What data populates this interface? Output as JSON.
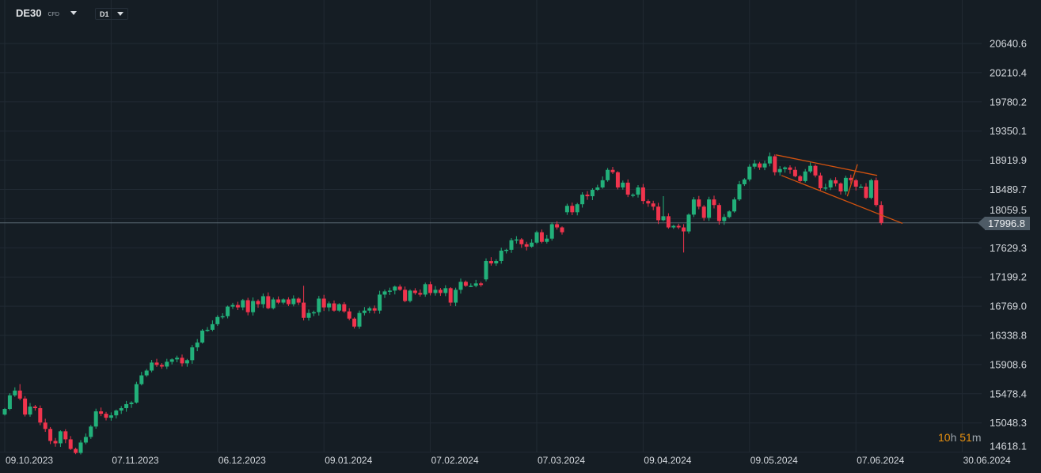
{
  "header": {
    "symbol": "DE30",
    "symbol_type": "CFD",
    "timeframe": "D1"
  },
  "countdown": {
    "hours": "10",
    "hours_unit": "h",
    "minutes": "51",
    "minutes_unit": "m"
  },
  "current_price": "17996.8",
  "colors": {
    "up": "#22b07a",
    "down": "#f0344d",
    "grid": "#212a33",
    "trendline": "#d2520f",
    "price_line": "#5d6a75",
    "background": "#151d24"
  },
  "chart_data": {
    "type": "candlestick",
    "title": "DE30 CFD D1",
    "ylim": [
      14618.1,
      20640.6
    ],
    "y_ticks": [
      "20640.6",
      "20210.4",
      "19780.2",
      "19350.1",
      "18919.9",
      "18489.7",
      "18059.5",
      "17629.3",
      "17199.2",
      "16769.0",
      "16338.8",
      "15908.6",
      "15478.4",
      "15048.3",
      "14618.1"
    ],
    "x_ticks": [
      {
        "index": 0,
        "label": "09.10.2023"
      },
      {
        "index": 21,
        "label": "07.11.2023"
      },
      {
        "index": 42,
        "label": "06.12.2023"
      },
      {
        "index": 63,
        "label": "09.01.2024"
      },
      {
        "index": 84,
        "label": "07.02.2024"
      },
      {
        "index": 105,
        "label": "07.03.2024"
      },
      {
        "index": 126,
        "label": "09.04.2024"
      },
      {
        "index": 147,
        "label": "09.05.2024"
      },
      {
        "index": 168,
        "label": "07.06.2024"
      },
      {
        "index": 189,
        "label": "30.06.2024"
      }
    ],
    "close": [
      15254.4,
      15454.7,
      15525.4,
      15407.6,
      15171.9,
      15289.7,
      15266.2,
      15054.0,
      14959.7,
      14782.9,
      14747.6,
      14924.4,
      14806.5,
      14665.1,
      14606.1,
      14759.4,
      14841.9,
      14995.1,
      15219.0,
      15183.7,
      15124.7,
      15160.1,
      15230.8,
      15266.2,
      15325.1,
      15348.7,
      15619.7,
      15749.4,
      15820.1,
      15938.0,
      15902.6,
      15879.0,
      15949.7,
      15985.1,
      16008.7,
      15926.2,
      15973.3,
      16161.9,
      16232.6,
      16409.4,
      16421.2,
      16503.7,
      16609.8,
      16621.5,
      16763.0,
      16786.5,
      16751.2,
      16857.3,
      16680.5,
      16845.5,
      16798.3,
      16916.2,
      16739.4,
      16869.0,
      16821.9,
      16869.0,
      16798.3,
      16880.8,
      16821.9,
      16598.0,
      16668.7,
      16680.5,
      16880.8,
      16751.2,
      16810.1,
      16704.0,
      16798.3,
      16692.3,
      16586.2,
      16468.3,
      16668.7,
      16704.0,
      16739.4,
      16704.0,
      16939.8,
      16986.9,
      16998.7,
      17057.6,
      17010.5,
      16845.5,
      16998.7,
      16963.3,
      16939.8,
      17093.0,
      16963.3,
      17010.5,
      16963.3,
      17034.1,
      16821.9,
      17010.5,
      17128.3,
      17069.4,
      17069.4,
      17104.8,
      17081.2,
      17434.8,
      17399.4,
      17434.8,
      17588.0,
      17599.8,
      17741.2,
      17753.0,
      17682.3,
      17646.9,
      17705.9,
      17859.1,
      17717.6,
      17764.8,
      17976.9,
      17929.8,
      17859.1,
      18248.0,
      18153.7,
      18271.6,
      18413.0,
      18389.4,
      18483.7,
      18519.1,
      18625.2,
      18778.4,
      18743.0,
      18519.1,
      18589.8,
      18413.0,
      18413.0,
      18519.1,
      18318.7,
      18283.4,
      18236.2,
      18035.9,
      18094.8,
      17929.8,
      17953.4,
      17929.8,
      17870.9,
      18118.4,
      18342.3,
      18236.2,
      18071.2,
      18342.3,
      18259.8,
      18024.1,
      18083.0,
      18165.5,
      18342.3,
      18566.2,
      18636.9,
      18825.5,
      18872.7,
      18813.7,
      18872.7,
      18978.7,
      18743.0,
      18790.2,
      18813.7,
      18778.4,
      18684.1,
      18613.4,
      18754.8,
      18837.3,
      18695.9,
      18507.3,
      18519.1,
      18625.2,
      18578.0,
      18460.2,
      18660.5,
      18625.2,
      18530.9,
      18530.9,
      18365.9,
      18625.2,
      18259.8,
      17996.8
    ],
    "open_gaps": {
      "0": 15171.9,
      "95": 17163.7,
      "111": 18153.7
    },
    "notable_wicks": {
      "3": {
        "high": 15620
      },
      "59": {
        "high": 17070
      },
      "130": {
        "high": 18390
      },
      "134": {
        "low": 17560
      }
    },
    "trendlines": [
      {
        "name": "channel-top",
        "from": [
          152.2,
          18999
        ],
        "to": [
          172.2,
          18696
        ]
      },
      {
        "name": "channel-bottom",
        "from": [
          153.3,
          18696
        ],
        "to": [
          177.2,
          17989
        ]
      },
      {
        "name": "breakout-line",
        "from": [
          166.3,
          18389
        ],
        "to": [
          168.3,
          18861
        ]
      }
    ],
    "current_price": 17996.8
  }
}
